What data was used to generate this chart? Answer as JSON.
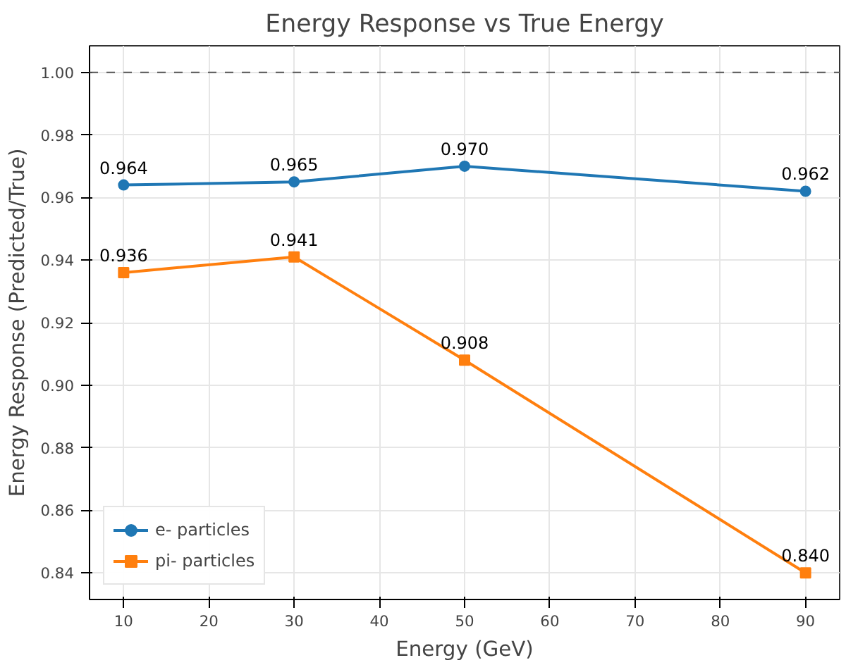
{
  "chart_data": {
    "type": "line",
    "title": "Energy Response vs True Energy",
    "xlabel": "Energy (GeV)",
    "ylabel": "Energy Response (Predicted/True)",
    "x": [
      10,
      30,
      50,
      90
    ],
    "series": [
      {
        "name": "e- particles",
        "color": "#1f77b4",
        "marker": "circle",
        "values": [
          0.964,
          0.965,
          0.97,
          0.962
        ],
        "value_labels": [
          "0.964",
          "0.965",
          "0.970",
          "0.962"
        ]
      },
      {
        "name": "pi- particles",
        "color": "#ff7f0e",
        "marker": "square",
        "values": [
          0.936,
          0.941,
          0.908,
          0.84
        ],
        "value_labels": [
          "0.936",
          "0.941",
          "0.908",
          "0.840"
        ]
      }
    ],
    "xlim": [
      6,
      94
    ],
    "xticks": [
      10,
      20,
      30,
      40,
      50,
      60,
      70,
      80,
      90
    ],
    "ylim": [
      0.8315,
      1.0085
    ],
    "yticks": [
      {
        "value": 0.84,
        "label": "0.84"
      },
      {
        "value": 0.86,
        "label": "0.86"
      },
      {
        "value": 0.88,
        "label": "0.88"
      },
      {
        "value": 0.9,
        "label": "0.90"
      },
      {
        "value": 0.92,
        "label": "0.92"
      },
      {
        "value": 0.94,
        "label": "0.94"
      },
      {
        "value": 0.96,
        "label": "0.96"
      },
      {
        "value": 0.98,
        "label": "0.98"
      },
      {
        "value": 1.0,
        "label": "1.00"
      }
    ],
    "ref_lines": [
      {
        "axis": "y",
        "value": 1.0,
        "label": null,
        "color": "#555555",
        "line_style": "dashed"
      }
    ],
    "grid": true,
    "legend": "bottom left",
    "line_style": "solid"
  }
}
